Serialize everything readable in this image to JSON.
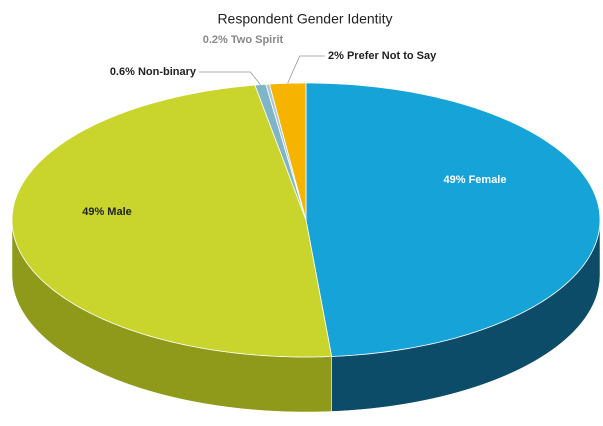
{
  "chart_data": {
    "type": "pie",
    "title": "Respondent Gender Identity",
    "values": [
      49,
      49,
      0.6,
      0.2,
      2
    ],
    "value_labels": [
      "49% Female",
      "49% Male",
      "0.6% Non-binary",
      "0.2% Two Spirit",
      "2% Prefer Not to Say"
    ],
    "colors": [
      "#16a3d8",
      "#c9d52c",
      "#7fb5c6",
      "#a9c9d6",
      "#f6b400"
    ],
    "side_colors": [
      "#0d4c69",
      "#8f9a1a",
      "#4f8696",
      "#7a9aa6",
      "#b98600"
    ]
  }
}
